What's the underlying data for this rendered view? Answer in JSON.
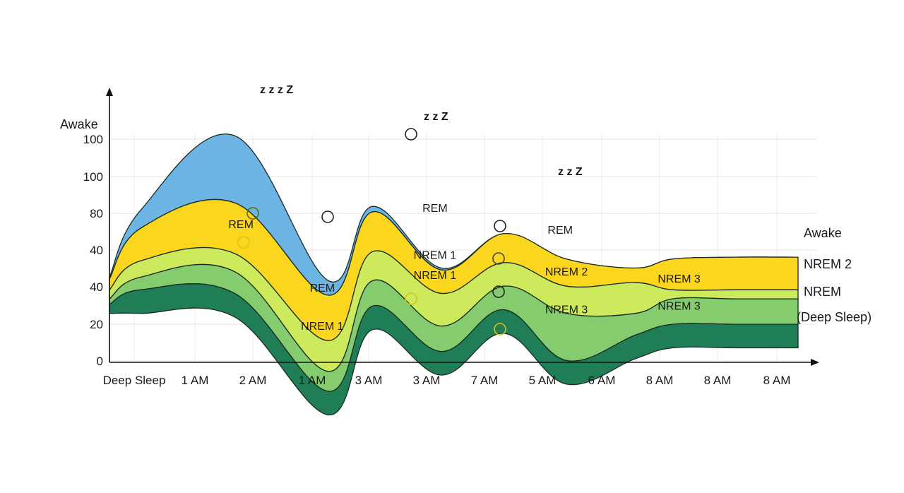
{
  "chart_data": {
    "type": "area",
    "title": "",
    "ylabel": "Awake",
    "xlabel": "",
    "y_tick_labels": [
      "100",
      "100",
      "80",
      "40",
      "40",
      "20",
      "0"
    ],
    "x_tick_labels": [
      "Deep Sleep",
      "1 AM",
      "2 AM",
      "1 AM",
      "3 AM",
      "3 AM",
      "7 AM",
      "5 AM",
      "6 AM",
      "8 AM",
      "8 AM",
      "8 AM"
    ],
    "ylim": [
      0,
      120
    ],
    "grid": true,
    "x": [
      0,
      0.5,
      2,
      3.5,
      4.2,
      5.3,
      6.3,
      7.3,
      8.4,
      9,
      10,
      11
    ],
    "series": [
      {
        "name": "Awake",
        "color": "#6cb4e4",
        "values": [
          47,
          84,
          125,
          45,
          86,
          52,
          71,
          57,
          52,
          57,
          58,
          58
        ]
      },
      {
        "name": "REM",
        "color": "#fbd61e",
        "values": [
          46,
          74,
          88,
          37,
          83,
          51,
          71,
          57,
          52,
          57,
          58,
          58
        ]
      },
      {
        "name": "NREM 1",
        "color": "#cdea5c",
        "values": [
          40,
          56,
          60,
          12,
          61,
          38,
          55,
          42,
          44,
          40,
          40,
          40
        ]
      },
      {
        "name": "NREM 2",
        "color": "#84cc6e",
        "values": [
          35,
          47,
          50,
          -5,
          45,
          20,
          42,
          27,
          27,
          35,
          35,
          35
        ]
      },
      {
        "name": "NREM 3",
        "color": "#1f7e56",
        "values": [
          32,
          40,
          38,
          -16,
          31,
          6,
          29,
          1,
          15,
          21,
          21,
          21
        ]
      }
    ],
    "region_labels": [
      {
        "text": "REM",
        "x": 2.1,
        "y": 74
      },
      {
        "text": "REM",
        "x": 3.4,
        "y": 39
      },
      {
        "text": "REM",
        "x": 5.2,
        "y": 83
      },
      {
        "text": "REM",
        "x": 7.2,
        "y": 71
      },
      {
        "text": "NREM 1",
        "x": 5.2,
        "y": 57
      },
      {
        "text": "NREM 1",
        "x": 5.2,
        "y": 46
      },
      {
        "text": "NREM 1",
        "x": 3.4,
        "y": 18
      },
      {
        "text": "NREM 2",
        "x": 7.3,
        "y": 48
      },
      {
        "text": "NREM 3",
        "x": 7.3,
        "y": 27
      },
      {
        "text": "NREM 3",
        "x": 9.1,
        "y": 44
      },
      {
        "text": "NREM 3",
        "x": 9.1,
        "y": 29
      }
    ],
    "legend": [
      "Awake",
      "NREM 2",
      "NREM",
      "(Deep Sleep)"
    ],
    "legend_placement": "right",
    "sleep_markers": [
      "z z z Z",
      "z z Z",
      "z z Z"
    ]
  }
}
